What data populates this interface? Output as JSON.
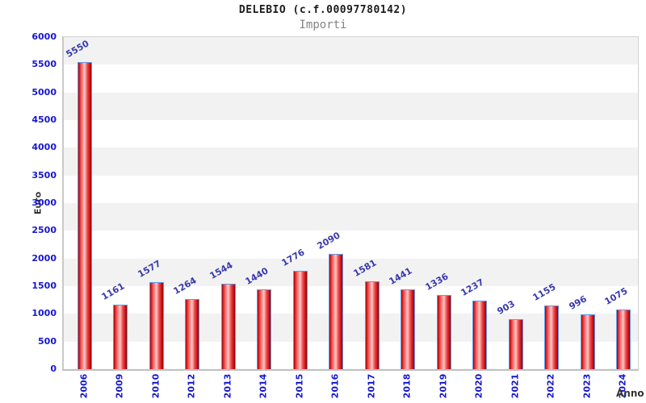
{
  "header": {
    "title": "DELEBIO (c.f.00097780142)",
    "subtitle": "Importi"
  },
  "chart_data": {
    "type": "bar",
    "title": "DELEBIO (c.f.00097780142)",
    "subtitle": "Importi",
    "xlabel": "Anno",
    "ylabel": "Euro",
    "categories": [
      "2006",
      "2009",
      "2010",
      "2012",
      "2013",
      "2014",
      "2015",
      "2016",
      "2017",
      "2018",
      "2019",
      "2020",
      "2021",
      "2022",
      "2023",
      "2024"
    ],
    "values": [
      5550,
      1161,
      1577,
      1264,
      1544,
      1440,
      1776,
      2090,
      1581,
      1441,
      1336,
      1237,
      903,
      1155,
      996,
      1075
    ],
    "ylim": [
      0,
      6000
    ],
    "ytick_step": 500,
    "yticks": [
      0,
      500,
      1000,
      1500,
      2000,
      2500,
      3000,
      3500,
      4000,
      4500,
      5000,
      5500,
      6000
    ],
    "grid": "alternating-horizontal-bands",
    "legend_position": "none",
    "bar_value_labels_rotation_deg": -30,
    "x_tick_rotation_deg": -90,
    "colors": {
      "bar_fill": "#e62e2e",
      "bar_fill_highlight": "#ffcaca",
      "bar_border": "#5f9bec",
      "axis_label_text": "#1717cf",
      "value_label_text": "#3a3aad",
      "band_gray": "#f2f2f2",
      "title_text": "#1c1c1c",
      "subtitle_text": "#838383",
      "axis_title_text": "#333333"
    }
  }
}
